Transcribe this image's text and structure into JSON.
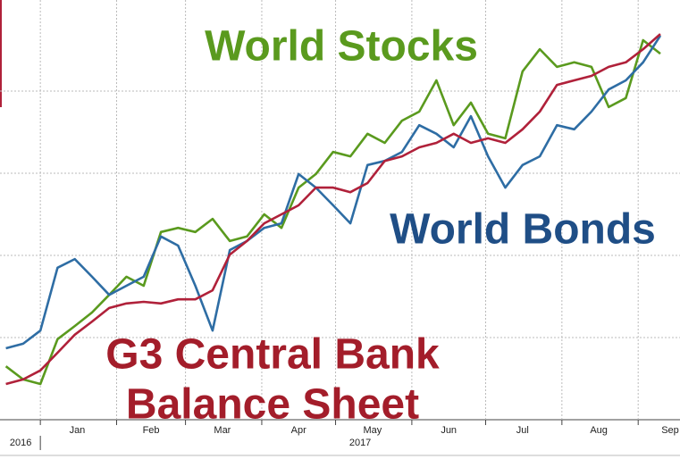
{
  "chart_data": {
    "type": "line",
    "x": [
      -14,
      -7,
      0,
      7,
      14,
      21,
      28,
      35,
      42,
      49,
      56,
      63,
      70,
      77,
      84,
      91,
      98,
      105,
      112,
      119,
      126,
      133,
      140,
      147,
      154,
      161,
      168,
      175,
      182,
      189,
      196,
      203,
      210,
      217,
      224,
      231,
      238,
      245,
      252
    ],
    "series": [
      {
        "color": "#5a9a1e",
        "values": [
          13.0,
          9.8,
          8.7,
          19.6,
          22.8,
          26.1,
          30.4,
          34.8,
          32.6,
          45.7,
          46.7,
          45.7,
          48.9,
          43.5,
          44.6,
          50.0,
          46.7,
          56.5,
          59.8,
          65.2,
          64.1,
          69.6,
          67.4,
          72.8,
          75.0,
          82.6,
          71.7,
          77.2,
          69.6,
          68.5,
          84.8,
          90.2,
          85.9,
          87.0,
          85.9,
          76.1,
          78.3,
          92.4,
          89.1
        ]
      },
      {
        "color": "#2e6da4",
        "values": [
          17.4,
          18.5,
          21.7,
          37.0,
          39.1,
          34.8,
          30.4,
          32.6,
          34.8,
          44.6,
          42.4,
          32.6,
          21.7,
          41.3,
          43.5,
          46.7,
          47.8,
          59.8,
          56.5,
          52.2,
          47.8,
          62.0,
          63.0,
          65.2,
          71.7,
          69.6,
          66.3,
          73.9,
          64.1,
          56.5,
          62.0,
          64.1,
          71.7,
          70.7,
          75.0,
          80.4,
          82.6,
          87.0,
          93.5
        ]
      },
      {
        "color": "#b0213a",
        "values": [
          8.7,
          9.8,
          12.0,
          16.3,
          20.7,
          23.9,
          27.2,
          28.3,
          28.7,
          28.3,
          29.3,
          29.3,
          31.5,
          40.2,
          43.5,
          47.8,
          50.0,
          52.2,
          56.5,
          56.5,
          55.4,
          57.6,
          63.0,
          64.1,
          66.3,
          67.4,
          69.6,
          67.4,
          68.5,
          67.4,
          70.7,
          75.0,
          81.5,
          82.6,
          83.7,
          85.9,
          87.0,
          90.2,
          93.9
        ]
      }
    ],
    "annotations": [
      {
        "text": "World Stocks",
        "color": "#5a9a1e"
      },
      {
        "text": "World Bonds",
        "color": "#1f4e86"
      },
      {
        "text": "G3 Central Bank",
        "color": "#a31d2a"
      },
      {
        "text": "Balance Sheet",
        "color": "#a31d2a"
      }
    ],
    "xlim": [
      -16.4,
      260
    ],
    "ylim": [
      0,
      100
    ],
    "xgrid": [
      0,
      31,
      59,
      90,
      120,
      151,
      181,
      212,
      243
    ],
    "ygrid": [
      20,
      40,
      60,
      80
    ],
    "xticks": [
      {
        "value": 15,
        "label": "Jan"
      },
      {
        "value": 45,
        "label": "Feb"
      },
      {
        "value": 74,
        "label": "Mar"
      },
      {
        "value": 105,
        "label": "Apr"
      },
      {
        "value": 135,
        "label": "May"
      },
      {
        "value": 166,
        "label": "Jun"
      },
      {
        "value": 196,
        "label": "Jul"
      },
      {
        "value": 227,
        "label": "Aug"
      },
      {
        "value": 256,
        "label": "Sep"
      }
    ],
    "year_labels": [
      {
        "value": -8,
        "label": "2016"
      },
      {
        "value": 130,
        "label": "2017"
      }
    ],
    "grid": true
  }
}
